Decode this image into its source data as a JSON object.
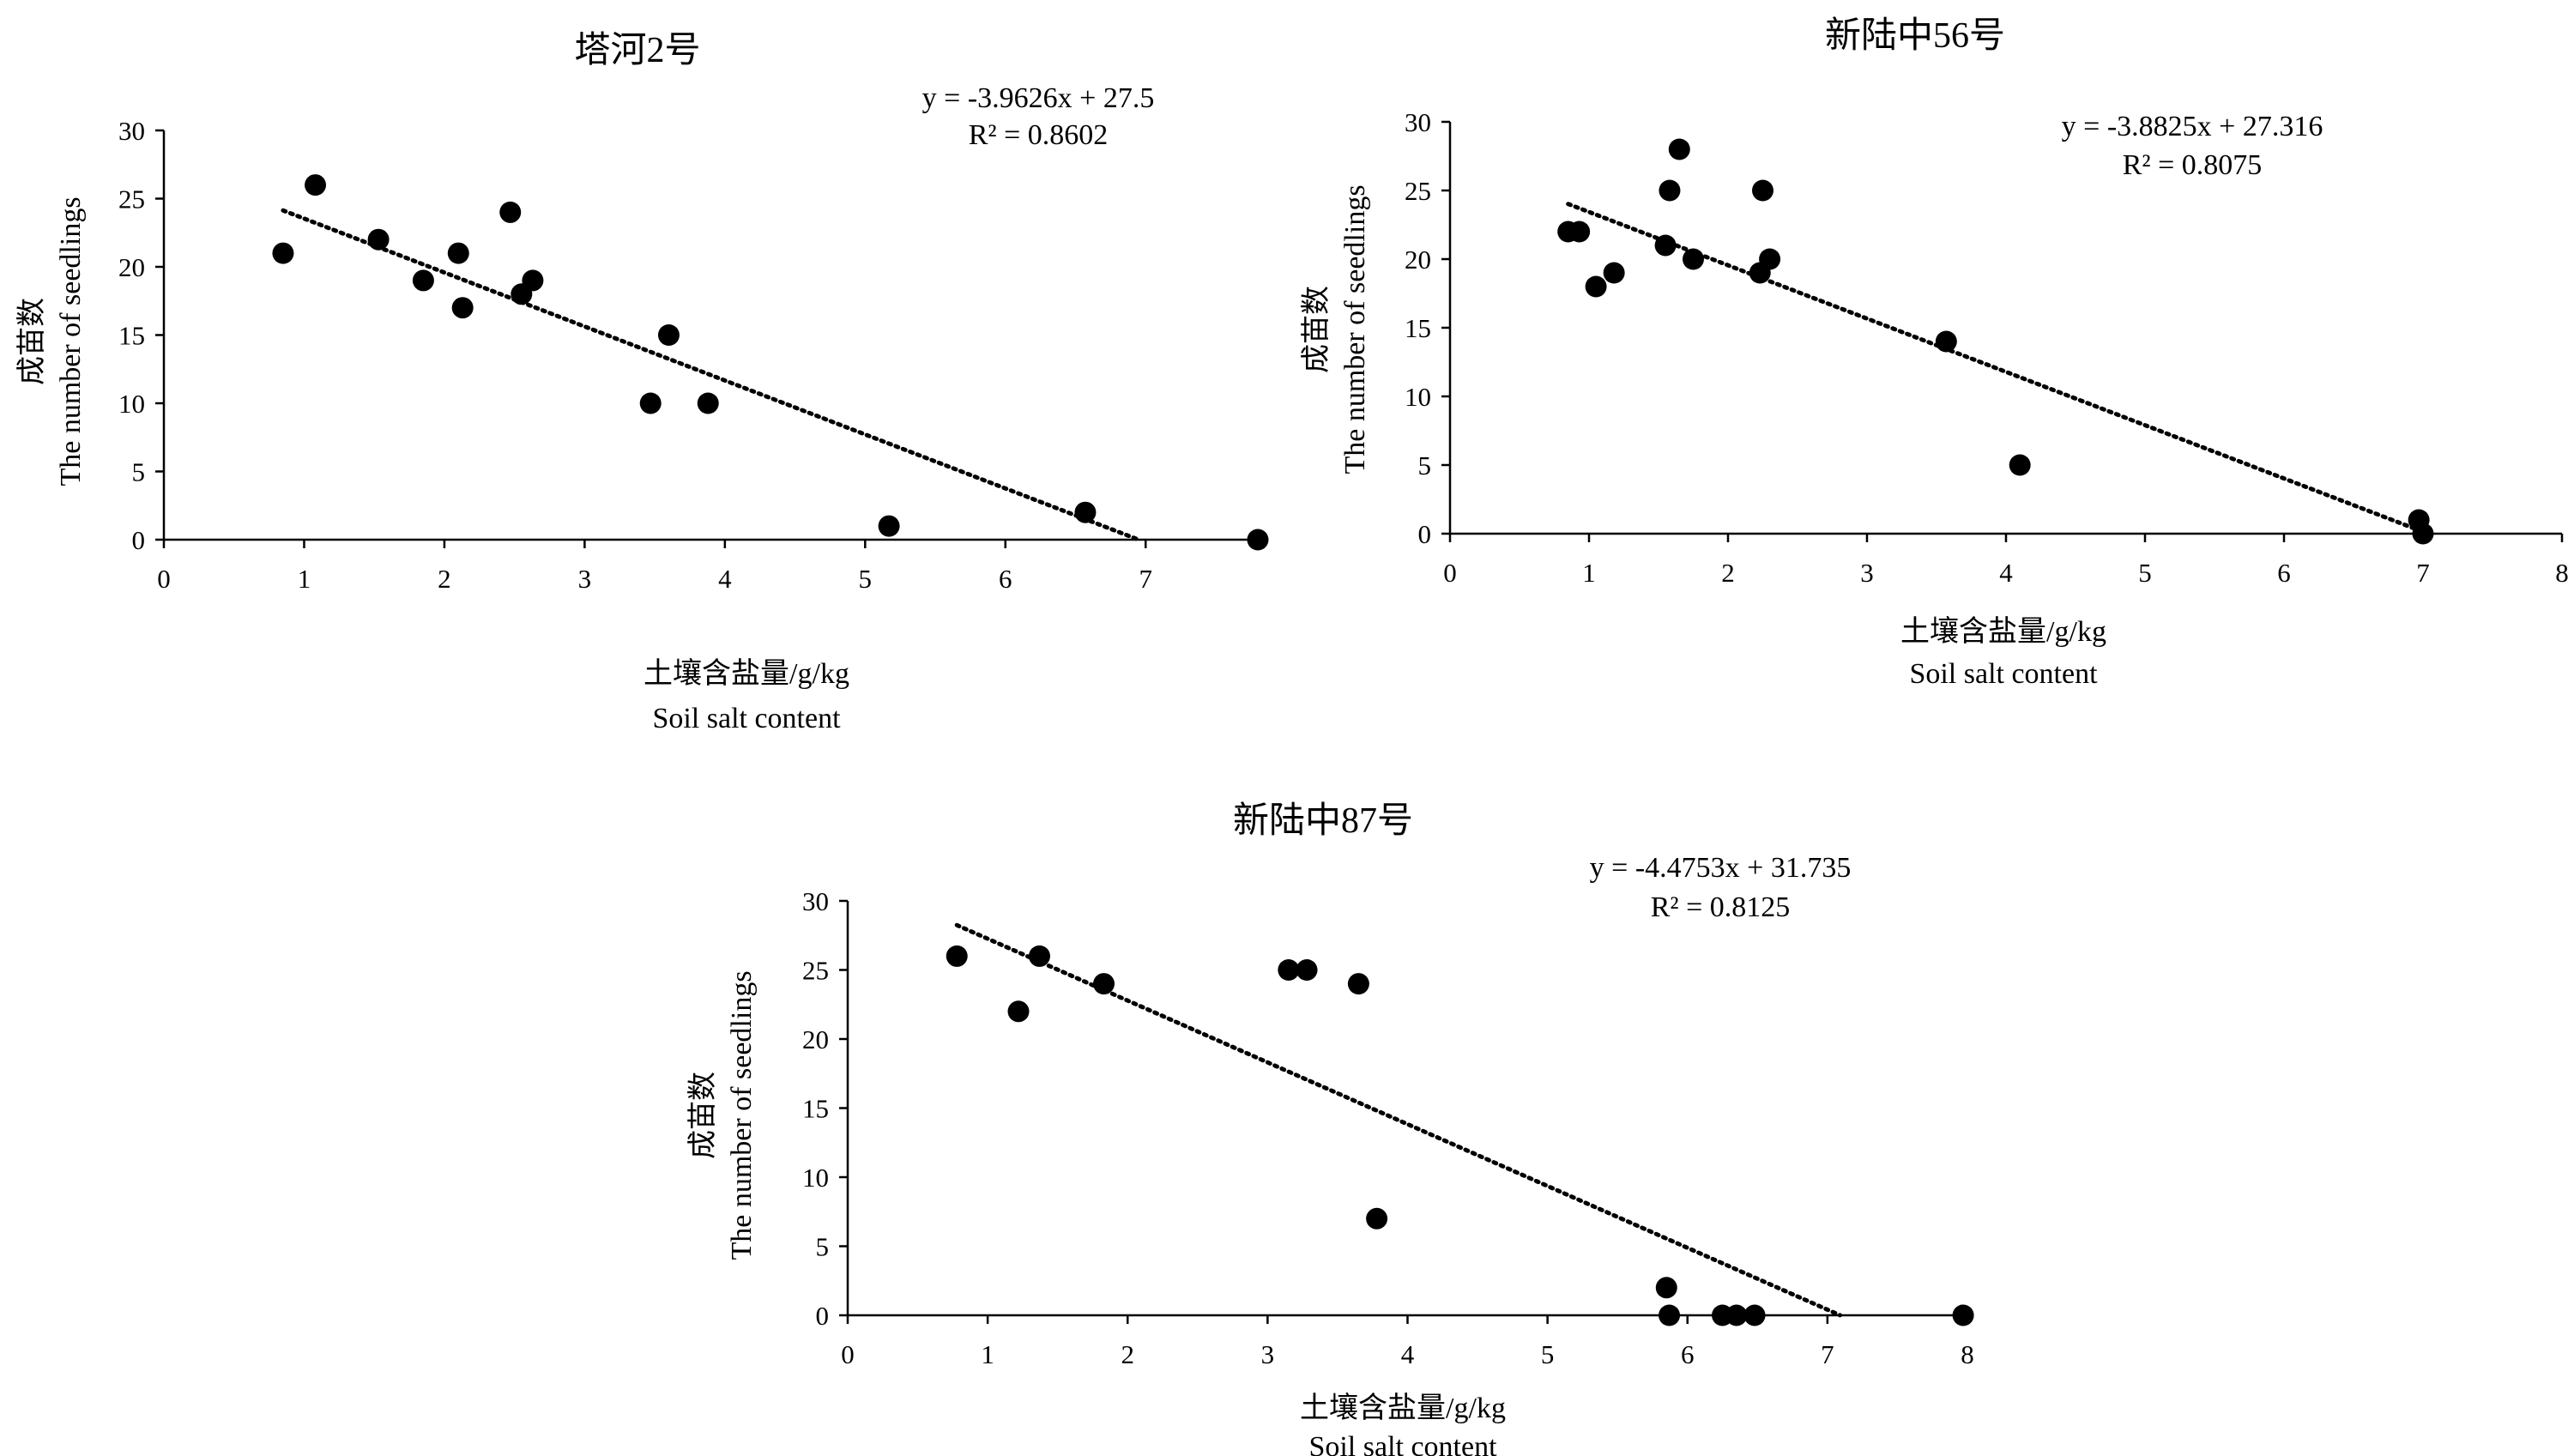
{
  "chart_data": [
    {
      "type": "scatter",
      "title": "塔河2号",
      "equation": "y = -3.9626x + 27.5",
      "r2": "R² = 0.8602",
      "trendline": {
        "slope": -3.9626,
        "intercept": 27.5,
        "x_start": 0.85,
        "x_end": 6.95
      },
      "xlabel_cn": "土壤含盐量/g/kg",
      "xlabel_en": "Soil salt content",
      "ylabel_cn": "成苗数",
      "ylabel_en": "The number of seedlings",
      "xlim": [
        0,
        7.8
      ],
      "ylim": [
        0,
        30
      ],
      "xticks": [
        "0",
        "1",
        "2",
        "3",
        "4",
        "5",
        "6",
        "7"
      ],
      "yticks": [
        "0",
        "5",
        "10",
        "15",
        "20",
        "25",
        "30"
      ],
      "grid": false,
      "x": [
        0.85,
        1.08,
        1.53,
        1.85,
        2.1,
        2.13,
        2.47,
        2.55,
        2.63,
        3.47,
        3.6,
        3.88,
        5.17,
        6.57,
        7.8
      ],
      "y": [
        21,
        26,
        22,
        19,
        21,
        17,
        24,
        18,
        19,
        10,
        15,
        10,
        1,
        2,
        0
      ]
    },
    {
      "type": "scatter",
      "title": "新陆中56号",
      "equation": "y = -3.8825x + 27.316",
      "r2": "R² = 0.8075",
      "trendline": {
        "slope": -3.8825,
        "intercept": 27.316,
        "x_start": 0.85,
        "x_end": 6.97
      },
      "xlabel_cn": "土壤含盐量/g/kg",
      "xlabel_en": "Soil salt content",
      "ylabel_cn": "成苗数",
      "ylabel_en": "The number of seedlings",
      "xlim": [
        0,
        8
      ],
      "ylim": [
        0,
        30
      ],
      "xticks": [
        "0",
        "1",
        "2",
        "3",
        "4",
        "5",
        "6",
        "7",
        "8"
      ],
      "yticks": [
        "0",
        "5",
        "10",
        "15",
        "20",
        "25",
        "30"
      ],
      "grid": false,
      "x": [
        0.85,
        0.93,
        1.05,
        1.18,
        1.55,
        1.58,
        1.65,
        1.75,
        2.23,
        2.25,
        2.3,
        3.57,
        4.1,
        6.97,
        7.0
      ],
      "y": [
        22,
        22,
        18,
        19,
        21,
        25,
        28,
        20,
        19,
        25,
        20,
        14,
        5,
        1,
        0
      ]
    },
    {
      "type": "scatter",
      "title": "新陆中87号",
      "equation": "y = -4.4753x + 31.735",
      "r2": "R² = 0.8125",
      "trendline": {
        "slope": -4.4753,
        "intercept": 31.735,
        "x_start": 0.78,
        "x_end": 7.09
      },
      "xlabel_cn": "土壤含盐量/g/kg",
      "xlabel_en": "Soil salt content",
      "ylabel_cn": "成苗数",
      "ylabel_en": "The number of seedlings",
      "xlim": [
        0,
        8
      ],
      "ylim": [
        0,
        30
      ],
      "xticks": [
        "0",
        "1",
        "2",
        "3",
        "4",
        "5",
        "6",
        "7",
        "8"
      ],
      "yticks": [
        "0",
        "5",
        "10",
        "15",
        "20",
        "25",
        "30"
      ],
      "grid": false,
      "x": [
        0.78,
        1.22,
        1.37,
        1.83,
        3.15,
        3.28,
        3.65,
        3.78,
        5.85,
        5.87,
        6.25,
        6.35,
        6.48,
        7.97
      ],
      "y": [
        26,
        22,
        26,
        24,
        25,
        25,
        24,
        7,
        2,
        0,
        0,
        0,
        0,
        0
      ]
    }
  ]
}
